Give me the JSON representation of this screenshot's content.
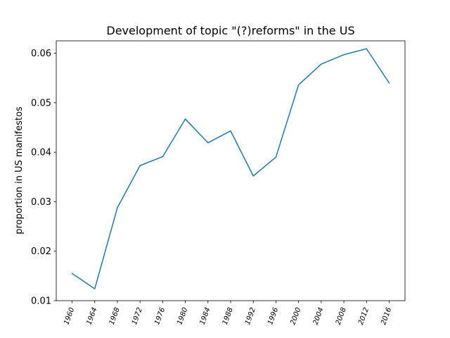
{
  "chart_data": {
    "type": "line",
    "title": "Development of topic \"(?)reforms\" in the US",
    "xlabel": "",
    "ylabel": "proportion in US manifestos",
    "categories": [
      "1960",
      "1964",
      "1968",
      "1972",
      "1976",
      "1980",
      "1984",
      "1988",
      "1992",
      "1996",
      "2000",
      "2004",
      "2008",
      "2012",
      "2016"
    ],
    "series": [
      {
        "values": [
          0.0155,
          0.0124,
          0.0288,
          0.0373,
          0.0391,
          0.0467,
          0.0419,
          0.0443,
          0.0352,
          0.039,
          0.0536,
          0.0578,
          0.0597,
          0.0609,
          0.054
        ],
        "color": "#1f77b4"
      }
    ],
    "ylim": [
      0.01,
      0.0625
    ],
    "yticks": [
      0.01,
      0.02,
      0.03,
      0.04,
      0.05,
      0.06
    ],
    "ytick_labels": [
      "0.01",
      "0.02",
      "0.03",
      "0.04",
      "0.05",
      "0.06"
    ],
    "grid": false,
    "legend": "none"
  }
}
